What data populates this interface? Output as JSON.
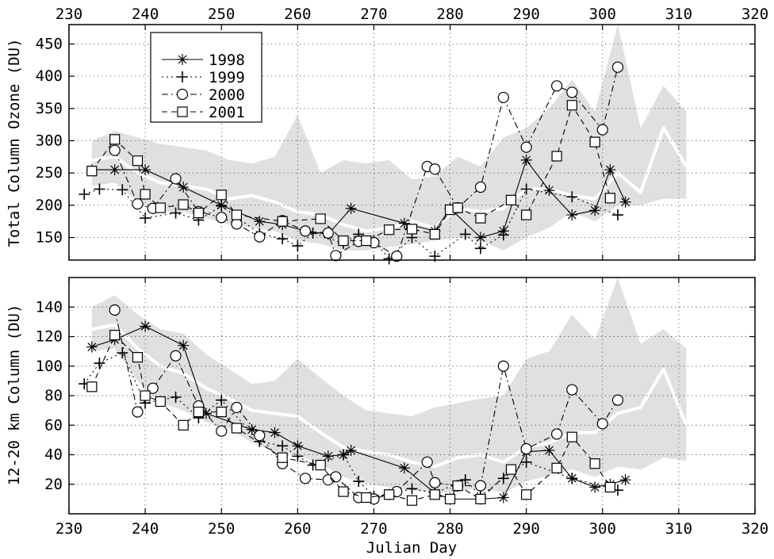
{
  "chart_data": [
    {
      "type": "line",
      "ylabel": "Total Column Ozone (DU)",
      "xlim": [
        230,
        320
      ],
      "ylim": [
        115,
        480
      ],
      "xticks": [
        "230",
        "240",
        "250",
        "260",
        "270",
        "280",
        "290",
        "300",
        "310",
        "320"
      ],
      "yticks": [
        "150",
        "200",
        "250",
        "300",
        "350",
        "400",
        "450"
      ],
      "grid": true,
      "legend_position": "top-left",
      "band": {
        "x": [
          233,
          236,
          239,
          242,
          245,
          248,
          251,
          254,
          257,
          260,
          263,
          266,
          269,
          272,
          275,
          278,
          281,
          284,
          287,
          290,
          293,
          296,
          299,
          302,
          305,
          308,
          311
        ],
        "upper": [
          300,
          315,
          305,
          295,
          290,
          285,
          270,
          265,
          275,
          340,
          250,
          270,
          265,
          270,
          240,
          245,
          275,
          260,
          305,
          320,
          350,
          395,
          345,
          495,
          320,
          385,
          345
        ],
        "lower": [
          230,
          235,
          205,
          190,
          190,
          180,
          170,
          165,
          160,
          145,
          140,
          130,
          130,
          135,
          140,
          145,
          150,
          145,
          130,
          150,
          165,
          190,
          175,
          200,
          200,
          210,
          210
        ]
      },
      "mean_line": {
        "x": [
          233,
          236,
          239,
          242,
          245,
          248,
          251,
          254,
          257,
          260,
          263,
          266,
          269,
          272,
          275,
          278,
          281,
          284,
          287,
          290,
          293,
          296,
          299,
          302,
          305,
          308,
          311
        ],
        "values": [
          270,
          275,
          250,
          235,
          230,
          225,
          210,
          215,
          205,
          190,
          185,
          170,
          160,
          165,
          175,
          165,
          195,
          190,
          195,
          225,
          225,
          215,
          210,
          250,
          220,
          320,
          260
        ]
      },
      "series": [
        {
          "name": "1998",
          "marker": "asterisk",
          "linestyle": "solid",
          "x": [
            233,
            236,
            240,
            245,
            250,
            255,
            258,
            261,
            264,
            267,
            274,
            278,
            280,
            284,
            287,
            290,
            293,
            296,
            299,
            301,
            303
          ],
          "y": [
            255,
            255,
            255,
            228,
            200,
            175,
            170,
            160,
            155,
            195,
            172,
            160,
            195,
            150,
            160,
            270,
            223,
            185,
            192,
            255,
            205
          ]
        },
        {
          "name": "1999",
          "marker": "plus",
          "linestyle": "dotted",
          "x": [
            232,
            234,
            237,
            240,
            244,
            247,
            250,
            255,
            258,
            260,
            262,
            266,
            268,
            270,
            272,
            275,
            278,
            282,
            284,
            287,
            290,
            296,
            302
          ],
          "y": [
            217,
            225,
            224,
            180,
            188,
            177,
            199,
            156,
            148,
            137,
            157,
            141,
            155,
            145,
            117,
            150,
            121,
            155,
            133,
            154,
            225,
            213,
            185
          ]
        },
        {
          "name": "2000",
          "marker": "circle",
          "linestyle": "dashdot",
          "x": [
            236,
            239,
            241,
            244,
            247,
            250,
            252,
            255,
            258,
            261,
            264,
            265,
            268,
            270,
            273,
            277,
            278,
            281,
            284,
            287,
            290,
            294,
            296,
            300,
            302
          ],
          "y": [
            285,
            202,
            195,
            241,
            190,
            181,
            171,
            151,
            176,
            160,
            157,
            122,
            144,
            142,
            121,
            260,
            256,
            196,
            228,
            367,
            290,
            385,
            375,
            317,
            414
          ]
        },
        {
          "name": "2001",
          "marker": "square",
          "linestyle": "dashed",
          "x": [
            233,
            236,
            239,
            240,
            242,
            245,
            247,
            250,
            252,
            258,
            263,
            266,
            269,
            272,
            275,
            278,
            280,
            281,
            284,
            288,
            290,
            294,
            296,
            299,
            301
          ],
          "y": [
            253,
            302,
            269,
            217,
            196,
            201,
            188,
            216,
            185,
            175,
            179,
            145,
            145,
            162,
            163,
            155,
            193,
            196,
            180,
            208,
            185,
            276,
            355,
            298,
            211
          ]
        }
      ]
    },
    {
      "type": "line",
      "xlabel": "Julian Day",
      "ylabel": "12-20 km Column (DU)",
      "xlim": [
        230,
        320
      ],
      "ylim": [
        0,
        160
      ],
      "xticks": [
        "230",
        "240",
        "250",
        "260",
        "270",
        "280",
        "290",
        "300",
        "310",
        "320"
      ],
      "yticks": [
        "20",
        "40",
        "60",
        "80",
        "100",
        "120",
        "140"
      ],
      "grid": true,
      "band": {
        "x": [
          233,
          236,
          239,
          242,
          245,
          248,
          251,
          254,
          257,
          260,
          263,
          266,
          269,
          272,
          275,
          278,
          281,
          284,
          287,
          290,
          293,
          296,
          299,
          302,
          305,
          308,
          311
        ],
        "upper": [
          140,
          148,
          135,
          125,
          122,
          108,
          98,
          88,
          90,
          105,
          92,
          80,
          70,
          68,
          66,
          72,
          75,
          78,
          80,
          105,
          110,
          135,
          118,
          165,
          115,
          125,
          112
        ],
        "lower": [
          110,
          112,
          90,
          75,
          70,
          62,
          58,
          48,
          42,
          40,
          34,
          25,
          20,
          18,
          16,
          14,
          15,
          18,
          14,
          22,
          26,
          30,
          25,
          32,
          30,
          38,
          36
        ]
      },
      "mean_line": {
        "x": [
          233,
          236,
          239,
          242,
          245,
          248,
          251,
          254,
          257,
          260,
          263,
          266,
          269,
          272,
          275,
          278,
          281,
          284,
          287,
          290,
          293,
          296,
          299,
          302,
          305,
          308,
          311
        ],
        "values": [
          125,
          128,
          112,
          100,
          95,
          85,
          78,
          70,
          68,
          66,
          55,
          45,
          42,
          40,
          35,
          32,
          38,
          40,
          35,
          45,
          48,
          55,
          55,
          68,
          72,
          98,
          60
        ]
      },
      "series": [
        {
          "name": "1998",
          "marker": "asterisk",
          "linestyle": "solid",
          "x": [
            233,
            236,
            240,
            245,
            248,
            254,
            257,
            260,
            264,
            266,
            267,
            274,
            278,
            280,
            284,
            287,
            290,
            293,
            296,
            299,
            301,
            303
          ],
          "y": [
            113,
            118,
            127,
            114,
            68,
            57,
            55,
            46,
            39,
            40,
            43,
            31,
            14,
            10,
            10,
            11,
            42,
            43,
            24,
            18,
            20,
            23
          ]
        },
        {
          "name": "1999",
          "marker": "plus",
          "linestyle": "dotted",
          "x": [
            232,
            234,
            237,
            240,
            244,
            247,
            250,
            255,
            258,
            260,
            262,
            266,
            268,
            270,
            272,
            275,
            278,
            282,
            284,
            287,
            290,
            296,
            302
          ],
          "y": [
            88,
            102,
            109,
            75,
            79,
            65,
            77,
            49,
            46,
            39,
            33,
            40,
            22,
            12,
            13,
            17,
            14,
            23,
            12,
            24,
            35,
            24,
            16
          ]
        },
        {
          "name": "2000",
          "marker": "circle",
          "linestyle": "dashdot",
          "x": [
            236,
            239,
            241,
            244,
            247,
            250,
            252,
            255,
            258,
            261,
            264,
            265,
            268,
            270,
            273,
            277,
            278,
            281,
            284,
            287,
            290,
            294,
            296,
            300,
            302
          ],
          "y": [
            138,
            69,
            85,
            107,
            73,
            56,
            72,
            53,
            34,
            24,
            23,
            25,
            11,
            10,
            15,
            35,
            21,
            19,
            19,
            100,
            44,
            54,
            84,
            61,
            77
          ]
        },
        {
          "name": "2001",
          "marker": "square",
          "linestyle": "dashed",
          "x": [
            233,
            236,
            239,
            240,
            242,
            245,
            247,
            250,
            252,
            258,
            263,
            266,
            269,
            272,
            275,
            278,
            280,
            281,
            284,
            288,
            290,
            294,
            296,
            299,
            301
          ],
          "y": [
            86,
            121,
            106,
            80,
            76,
            60,
            69,
            69,
            58,
            38,
            33,
            15,
            11,
            13,
            9,
            13,
            10,
            19,
            10,
            30,
            13,
            31,
            52,
            34,
            18
          ]
        }
      ]
    }
  ]
}
